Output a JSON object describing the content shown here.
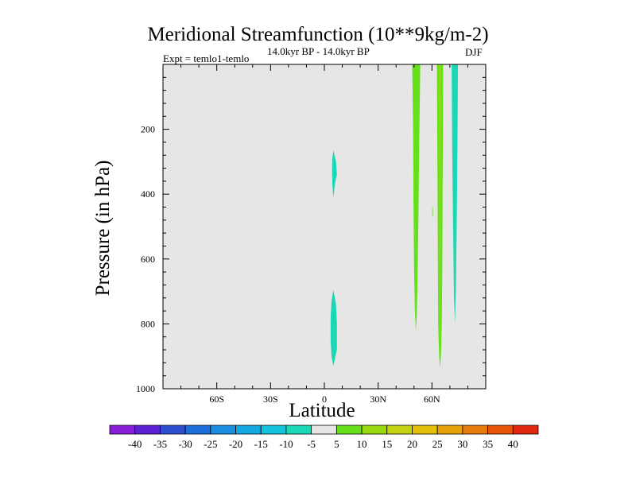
{
  "chart_data": {
    "type": "heatmap",
    "title": "Meridional Streamfunction (10**9kg/m-2)",
    "left_label": "Expt = temlo1-temlo",
    "center_label": "14.0kyr BP - 14.0kyr BP",
    "right_label": "DJF",
    "xlabel": "Latitude",
    "ylabel": "Pressure (in hPa)",
    "xlim": [
      -90,
      90
    ],
    "ylim": [
      1000,
      0
    ],
    "xticks": [
      {
        "value": -60,
        "label": "60S"
      },
      {
        "value": -30,
        "label": "30S"
      },
      {
        "value": 0,
        "label": "0"
      },
      {
        "value": 30,
        "label": "30N"
      },
      {
        "value": 60,
        "label": "60N"
      }
    ],
    "yticks": [
      {
        "value": 200,
        "label": "200"
      },
      {
        "value": 400,
        "label": "400"
      },
      {
        "value": 600,
        "label": "600"
      },
      {
        "value": 800,
        "label": "800"
      },
      {
        "value": 1000,
        "label": "1000"
      }
    ],
    "background_color": "#e6e6e6",
    "colorbar": {
      "levels": [
        -40,
        -35,
        -30,
        -25,
        -20,
        -15,
        -10,
        -5,
        5,
        10,
        15,
        20,
        25,
        30,
        35,
        40
      ],
      "colors": [
        "#8a1ed8",
        "#5a20d2",
        "#2e4fd0",
        "#1c6fda",
        "#1a8ee0",
        "#14a8e0",
        "#14c4dc",
        "#1ad8b6",
        "#e6e6e6",
        "#66e01a",
        "#9ad810",
        "#c4d410",
        "#e2bf08",
        "#e6a00a",
        "#e67a0a",
        "#e6540a",
        "#e02810"
      ]
    },
    "regions": [
      {
        "name": "region-neg-upper-tropics",
        "level": "-10 to -5",
        "color": "#1ad8b6",
        "polygon": [
          [
            5,
            265
          ],
          [
            6.5,
            300
          ],
          [
            7,
            340
          ],
          [
            6,
            365
          ],
          [
            5,
            410
          ],
          [
            4.5,
            370
          ],
          [
            4.3,
            320
          ],
          [
            4.5,
            290
          ]
        ]
      },
      {
        "name": "region-neg-lower-tropics",
        "level": "-10 to -5",
        "color": "#1ad8b6",
        "polygon": [
          [
            5,
            695
          ],
          [
            6.5,
            740
          ],
          [
            7,
            800
          ],
          [
            7,
            880
          ],
          [
            6,
            905
          ],
          [
            5,
            930
          ],
          [
            4,
            900
          ],
          [
            3.5,
            850
          ],
          [
            3.5,
            780
          ],
          [
            4,
            730
          ]
        ]
      },
      {
        "name": "region-pos-midlat-band",
        "level": "5 to 10",
        "color": "#66e01a",
        "polygon": [
          [
            49,
            0
          ],
          [
            53.5,
            0
          ],
          [
            53,
            200
          ],
          [
            52.5,
            450
          ],
          [
            52,
            650
          ],
          [
            51.5,
            780
          ],
          [
            51,
            820
          ],
          [
            50.5,
            760
          ],
          [
            50,
            620
          ],
          [
            49.7,
            420
          ],
          [
            49.5,
            220
          ]
        ]
      },
      {
        "name": "region-pos-highlat-band",
        "level": "5 to 10",
        "color": "#66e01a",
        "polygon": [
          [
            62.8,
            0
          ],
          [
            66.2,
            0
          ],
          [
            66,
            300
          ],
          [
            65.8,
            600
          ],
          [
            65.5,
            800
          ],
          [
            65,
            900
          ],
          [
            64.5,
            935
          ],
          [
            64,
            900
          ],
          [
            63.5,
            800
          ],
          [
            63.2,
            500
          ],
          [
            63,
            250
          ]
        ]
      },
      {
        "name": "region-pos-highlat-core",
        "level": "10 to 15",
        "color": "#9ad810",
        "polygon": [
          [
            64,
            0
          ],
          [
            65,
            0
          ],
          [
            64.8,
            400
          ],
          [
            64.6,
            800
          ],
          [
            64.4,
            900
          ],
          [
            64.2,
            800
          ],
          [
            64.1,
            400
          ]
        ]
      },
      {
        "name": "region-neg-polar-band",
        "level": "-10 to -5",
        "color": "#1ad8b6",
        "polygon": [
          [
            71,
            0
          ],
          [
            74.5,
            0
          ],
          [
            74.3,
            200
          ],
          [
            73.8,
            500
          ],
          [
            73.3,
            700
          ],
          [
            72.8,
            800
          ],
          [
            72.3,
            720
          ],
          [
            71.8,
            500
          ],
          [
            71.3,
            250
          ]
        ]
      },
      {
        "name": "region-pos-isolated-dot",
        "level": "5 to 10",
        "color": "#66e01a",
        "polygon": [
          [
            60.2,
            440
          ],
          [
            60.5,
            440
          ],
          [
            60.5,
            470
          ],
          [
            60.2,
            470
          ]
        ]
      }
    ]
  }
}
